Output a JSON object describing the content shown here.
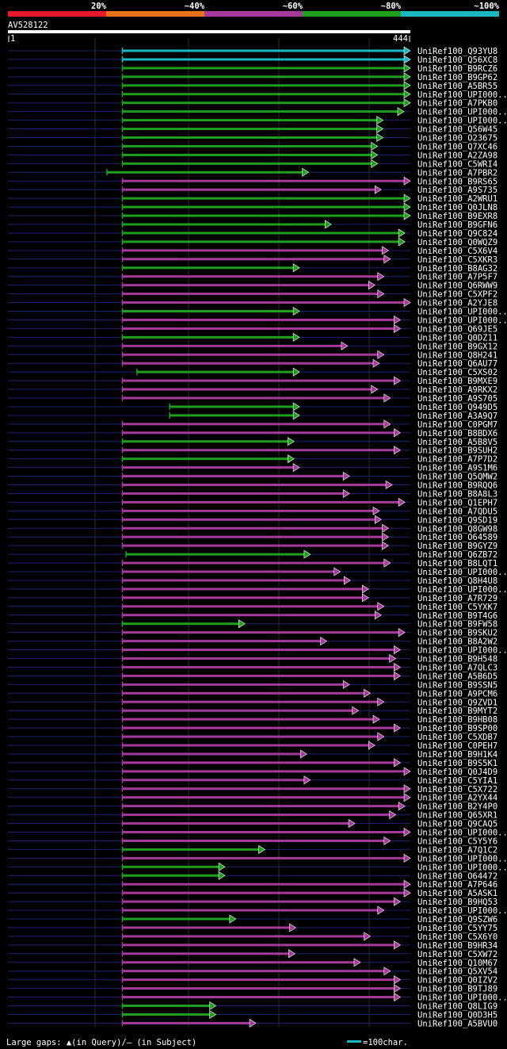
{
  "colors": {
    "background": "#000000",
    "text": "#ffffff",
    "scale": [
      "#e8192c",
      "#e8731a",
      "#a63a9c",
      "#1ea01e",
      "#1ab7c2"
    ],
    "track": "#1c2470",
    "gap": "#ffffcc"
  },
  "scale_labels": [
    "20%",
    "~40%",
    "~60%",
    "~80%",
    "~100%"
  ],
  "query": {
    "name": "AV528122",
    "start": "1",
    "end": "444",
    "length": 444
  },
  "legend": {
    "gaps": "Large gaps: ▲(in Query)/– (in Subject)",
    "scale_text": "=100char."
  },
  "chart_data": {
    "type": "alignment",
    "query_length": 444,
    "color_bins": [
      "20%",
      "~40%",
      "~60%",
      "~80%",
      "~100%"
    ],
    "hits": [
      {
        "name": "UniRef100_Q93YU8",
        "start": 127,
        "end": 444,
        "bin": 4
      },
      {
        "name": "UniRef100_Q56XC8",
        "start": 127,
        "end": 444,
        "bin": 4
      },
      {
        "name": "UniRef100_B9RCZ6",
        "start": 127,
        "end": 444,
        "bin": 3
      },
      {
        "name": "UniRef100_B9GP62",
        "start": 127,
        "end": 444,
        "bin": 3
      },
      {
        "name": "UniRef100_A5BR55",
        "start": 127,
        "end": 444,
        "bin": 3
      },
      {
        "name": "UniRef100_UPI000..",
        "start": 127,
        "end": 444,
        "bin": 3
      },
      {
        "name": "UniRef100_A7PKB0",
        "start": 127,
        "end": 444,
        "bin": 3
      },
      {
        "name": "UniRef100_UPI000..",
        "start": 127,
        "end": 437,
        "bin": 3
      },
      {
        "name": "UniRef100_UPI000..",
        "start": 127,
        "end": 414,
        "bin": 3
      },
      {
        "name": "UniRef100_Q56W45",
        "start": 127,
        "end": 414,
        "bin": 3
      },
      {
        "name": "UniRef100_O23675",
        "start": 127,
        "end": 414,
        "bin": 3
      },
      {
        "name": "UniRef100_Q7XC46",
        "start": 127,
        "end": 408,
        "bin": 3
      },
      {
        "name": "UniRef100_A2ZA98",
        "start": 127,
        "end": 408,
        "bin": 3
      },
      {
        "name": "UniRef100_C5WRI4",
        "start": 127,
        "end": 408,
        "bin": 3
      },
      {
        "name": "UniRef100_A7PBR2",
        "start": 110,
        "end": 332,
        "bin": 3
      },
      {
        "name": "UniRef100_B9RS65",
        "start": 127,
        "end": 444,
        "bin": 2
      },
      {
        "name": "UniRef100_A9S735",
        "start": 127,
        "end": 412,
        "bin": 2
      },
      {
        "name": "UniRef100_A2WRU1",
        "start": 127,
        "end": 444,
        "bin": 3
      },
      {
        "name": "UniRef100_Q0JLN8",
        "start": 127,
        "end": 444,
        "bin": 3
      },
      {
        "name": "UniRef100_B9EXR8",
        "start": 127,
        "end": 444,
        "bin": 3
      },
      {
        "name": "UniRef100_B9GFN6",
        "start": 127,
        "end": 357,
        "bin": 3
      },
      {
        "name": "UniRef100_Q9C824",
        "start": 127,
        "end": 438,
        "bin": 3
      },
      {
        "name": "UniRef100_Q0WQZ9",
        "start": 127,
        "end": 438,
        "bin": 3
      },
      {
        "name": "UniRef100_C5X6V4",
        "start": 127,
        "end": 420,
        "bin": 2
      },
      {
        "name": "UniRef100_C5XKR3",
        "start": 127,
        "end": 422,
        "bin": 2
      },
      {
        "name": "UniRef100_B8AG32",
        "start": 127,
        "end": 322,
        "bin": 3
      },
      {
        "name": "UniRef100_A7P5F7",
        "start": 127,
        "end": 415,
        "bin": 2
      },
      {
        "name": "UniRef100_Q6RWW9",
        "start": 127,
        "end": 405,
        "bin": 2
      },
      {
        "name": "UniRef100_C5XPF2",
        "start": 127,
        "end": 415,
        "bin": 2
      },
      {
        "name": "UniRef100_A2YJE8",
        "start": 127,
        "end": 444,
        "bin": 2
      },
      {
        "name": "UniRef100_UPI000..",
        "start": 127,
        "end": 322,
        "bin": 3
      },
      {
        "name": "UniRef100_UPI000..",
        "start": 127,
        "end": 433,
        "bin": 2
      },
      {
        "name": "UniRef100_Q69JE5",
        "start": 127,
        "end": 433,
        "bin": 2
      },
      {
        "name": "UniRef100_Q0DZ11",
        "start": 127,
        "end": 322,
        "bin": 3
      },
      {
        "name": "UniRef100_B9GX12",
        "start": 127,
        "end": 375,
        "bin": 2
      },
      {
        "name": "UniRef100_Q8H241",
        "start": 127,
        "end": 415,
        "bin": 2
      },
      {
        "name": "UniRef100_Q6AU77",
        "start": 127,
        "end": 410,
        "bin": 2
      },
      {
        "name": "UniRef100_C5XS02",
        "start": 143,
        "end": 322,
        "bin": 3
      },
      {
        "name": "UniRef100_B9MXE9",
        "start": 127,
        "end": 433,
        "bin": 2
      },
      {
        "name": "UniRef100_A9RKX2",
        "start": 127,
        "end": 408,
        "bin": 2
      },
      {
        "name": "UniRef100_A9S705",
        "start": 127,
        "end": 422,
        "bin": 2
      },
      {
        "name": "UniRef100_Q949D5",
        "start": 179,
        "end": 322,
        "bin": 3
      },
      {
        "name": "UniRef100_A3A9Q7",
        "start": 179,
        "end": 322,
        "bin": 3
      },
      {
        "name": "UniRef100_C0PGM7",
        "start": 127,
        "end": 422,
        "bin": 2
      },
      {
        "name": "UniRef100_B8BDX6",
        "start": 127,
        "end": 433,
        "bin": 2
      },
      {
        "name": "UniRef100_A5B8V5",
        "start": 127,
        "end": 316,
        "bin": 3
      },
      {
        "name": "UniRef100_B9SUH2",
        "start": 127,
        "end": 433,
        "bin": 2
      },
      {
        "name": "UniRef100_A7P7D2",
        "start": 127,
        "end": 316,
        "bin": 3
      },
      {
        "name": "UniRef100_A9S1M6",
        "start": 127,
        "end": 322,
        "bin": 2
      },
      {
        "name": "UniRef100_Q5QMW2",
        "start": 127,
        "end": 377,
        "bin": 2
      },
      {
        "name": "UniRef100_B9RQQ6",
        "start": 127,
        "end": 424,
        "bin": 2
      },
      {
        "name": "UniRef100_B8A8L3",
        "start": 127,
        "end": 377,
        "bin": 2
      },
      {
        "name": "UniRef100_Q1EPH7",
        "start": 127,
        "end": 438,
        "bin": 2
      },
      {
        "name": "UniRef100_A7QDU5",
        "start": 127,
        "end": 410,
        "bin": 2
      },
      {
        "name": "UniRef100_Q9SD19",
        "start": 127,
        "end": 412,
        "bin": 2
      },
      {
        "name": "UniRef100_Q8GW98",
        "start": 127,
        "end": 420,
        "bin": 2
      },
      {
        "name": "UniRef100_O64589",
        "start": 127,
        "end": 420,
        "bin": 2
      },
      {
        "name": "UniRef100_B9GYZ9",
        "start": 127,
        "end": 420,
        "bin": 2
      },
      {
        "name": "UniRef100_Q6ZB72",
        "start": 131,
        "end": 334,
        "bin": 3
      },
      {
        "name": "UniRef100_B8LQT1",
        "start": 127,
        "end": 422,
        "bin": 2
      },
      {
        "name": "UniRef100_UPI000..",
        "start": 127,
        "end": 367,
        "bin": 2
      },
      {
        "name": "UniRef100_Q8H4U8",
        "start": 127,
        "end": 378,
        "bin": 2
      },
      {
        "name": "UniRef100_UPI000..",
        "start": 127,
        "end": 398,
        "bin": 2
      },
      {
        "name": "UniRef100_A7R729",
        "start": 127,
        "end": 398,
        "bin": 2
      },
      {
        "name": "UniRef100_C5YXK7",
        "start": 127,
        "end": 415,
        "bin": 2
      },
      {
        "name": "UniRef100_B9T4G6",
        "start": 127,
        "end": 412,
        "bin": 2
      },
      {
        "name": "UniRef100_B9FW58",
        "start": 127,
        "end": 262,
        "bin": 3
      },
      {
        "name": "UniRef100_B9SKU2",
        "start": 127,
        "end": 438,
        "bin": 2
      },
      {
        "name": "UniRef100_B8A2W2",
        "start": 127,
        "end": 352,
        "bin": 2
      },
      {
        "name": "UniRef100_UPI000..",
        "start": 127,
        "end": 433,
        "bin": 2
      },
      {
        "name": "UniRef100_B9H548",
        "start": 127,
        "end": 428,
        "bin": 2
      },
      {
        "name": "UniRef100_A7QLC3",
        "start": 127,
        "end": 433,
        "bin": 2
      },
      {
        "name": "UniRef100_A5B6D5",
        "start": 127,
        "end": 433,
        "bin": 2
      },
      {
        "name": "UniRef100_B9SSN5",
        "start": 127,
        "end": 377,
        "bin": 2
      },
      {
        "name": "UniRef100_A9PCM6",
        "start": 127,
        "end": 400,
        "bin": 2
      },
      {
        "name": "UniRef100_Q9ZVD1",
        "start": 127,
        "end": 415,
        "bin": 2
      },
      {
        "name": "UniRef100_B9MYT2",
        "start": 127,
        "end": 387,
        "bin": 2
      },
      {
        "name": "UniRef100_B9HB08",
        "start": 127,
        "end": 410,
        "bin": 2
      },
      {
        "name": "UniRef100_B9SP00",
        "start": 127,
        "end": 433,
        "bin": 2
      },
      {
        "name": "UniRef100_C5XDB7",
        "start": 127,
        "end": 415,
        "bin": 2
      },
      {
        "name": "UniRef100_C0PEH7",
        "start": 127,
        "end": 405,
        "bin": 2
      },
      {
        "name": "UniRef100_B9H1K4",
        "start": 127,
        "end": 330,
        "bin": 2
      },
      {
        "name": "UniRef100_B9S5K1",
        "start": 127,
        "end": 433,
        "bin": 2
      },
      {
        "name": "UniRef100_Q0J4D9",
        "start": 127,
        "end": 444,
        "bin": 2
      },
      {
        "name": "UniRef100_C5YIA1",
        "start": 127,
        "end": 334,
        "bin": 2
      },
      {
        "name": "UniRef100_C5X722",
        "start": 127,
        "end": 444,
        "bin": 2
      },
      {
        "name": "UniRef100_A2YX44",
        "start": 127,
        "end": 444,
        "bin": 2
      },
      {
        "name": "UniRef100_B2Y4P0",
        "start": 127,
        "end": 438,
        "bin": 2
      },
      {
        "name": "UniRef100_Q65XR1",
        "start": 127,
        "end": 428,
        "bin": 2
      },
      {
        "name": "UniRef100_Q9CAQ5",
        "start": 127,
        "end": 383,
        "bin": 2
      },
      {
        "name": "UniRef100_UPI000..",
        "start": 127,
        "end": 444,
        "bin": 2
      },
      {
        "name": "UniRef100_C5Y5Y6",
        "start": 127,
        "end": 422,
        "bin": 2
      },
      {
        "name": "UniRef100_A7Q1C2",
        "start": 127,
        "end": 284,
        "bin": 3
      },
      {
        "name": "UniRef100_UPI000..",
        "start": 127,
        "end": 444,
        "bin": 2
      },
      {
        "name": "UniRef100_UPI000..",
        "start": 127,
        "end": 240,
        "bin": 3
      },
      {
        "name": "UniRef100_O64472",
        "start": 127,
        "end": 240,
        "bin": 3
      },
      {
        "name": "UniRef100_A7P646",
        "start": 127,
        "end": 444,
        "bin": 2
      },
      {
        "name": "UniRef100_A5ASK1",
        "start": 127,
        "end": 444,
        "bin": 2
      },
      {
        "name": "UniRef100_B9HQ53",
        "start": 127,
        "end": 433,
        "bin": 2
      },
      {
        "name": "UniRef100_UPI000..",
        "start": 127,
        "end": 415,
        "bin": 2
      },
      {
        "name": "UniRef100_Q9SZW6",
        "start": 127,
        "end": 252,
        "bin": 3
      },
      {
        "name": "UniRef100_C5YY75",
        "start": 127,
        "end": 318,
        "bin": 2
      },
      {
        "name": "UniRef100_C5X6Y0",
        "start": 127,
        "end": 400,
        "bin": 2
      },
      {
        "name": "UniRef100_B9HR34",
        "start": 127,
        "end": 433,
        "bin": 2
      },
      {
        "name": "UniRef100_C5XW72",
        "start": 127,
        "end": 317,
        "bin": 2
      },
      {
        "name": "UniRef100_Q10M67",
        "start": 127,
        "end": 389,
        "bin": 2
      },
      {
        "name": "UniRef100_Q5XV54",
        "start": 127,
        "end": 422,
        "bin": 2
      },
      {
        "name": "UniRef100_Q0IZV2",
        "start": 127,
        "end": 433,
        "bin": 2
      },
      {
        "name": "UniRef100_B9TJ89",
        "start": 127,
        "end": 433,
        "bin": 2
      },
      {
        "name": "UniRef100_UPI000..",
        "start": 127,
        "end": 433,
        "bin": 2
      },
      {
        "name": "UniRef100_Q8LIG9",
        "start": 127,
        "end": 230,
        "bin": 3
      },
      {
        "name": "UniRef100_Q0D3H5",
        "start": 127,
        "end": 230,
        "bin": 3
      },
      {
        "name": "UniRef100_A5BVU0",
        "start": 127,
        "end": 274,
        "bin": 2
      }
    ]
  }
}
